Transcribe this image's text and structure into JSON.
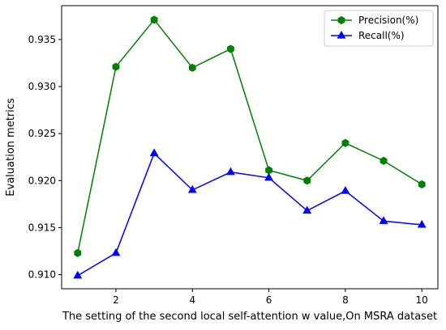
{
  "chart_data": {
    "type": "line",
    "title": "",
    "xlabel": "The setting of the second local self-attention w value,On MSRA dataset",
    "ylabel": "Evaluation metrics",
    "xlim": [
      0.58,
      10.42
    ],
    "ylim": [
      0.9085,
      0.9386
    ],
    "xticks": [
      2,
      4,
      6,
      8,
      10
    ],
    "xtick_labels": [
      "2",
      "4",
      "6",
      "8",
      "10"
    ],
    "yticks": [
      0.91,
      0.915,
      0.92,
      0.925,
      0.93,
      0.935
    ],
    "ytick_labels": [
      "0.910",
      "0.915",
      "0.920",
      "0.925",
      "0.930",
      "0.935"
    ],
    "grid": false,
    "legend_position": "top-right",
    "x": [
      1,
      2,
      3,
      4,
      5,
      6,
      7,
      8,
      9,
      10
    ],
    "series": [
      {
        "name": "Precision(%)",
        "color": "#008000",
        "marker": "hexagon",
        "values": [
          0.9123,
          0.9321,
          0.9371,
          0.932,
          0.934,
          0.9211,
          0.92,
          0.924,
          0.9221,
          0.9196
        ]
      },
      {
        "name": "Recall(%)",
        "color": "#0000ff",
        "marker": "triangle-up",
        "values": [
          0.9099,
          0.9123,
          0.9229,
          0.919,
          0.9209,
          0.9203,
          0.9168,
          0.9189,
          0.9157,
          0.9153
        ]
      }
    ]
  }
}
